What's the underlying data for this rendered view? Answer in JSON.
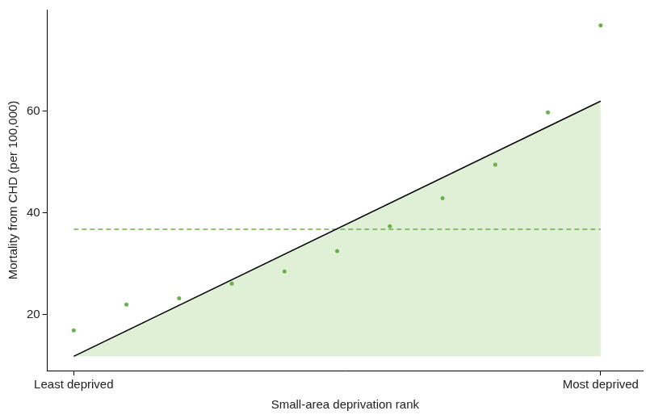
{
  "chart_data": {
    "type": "scatter",
    "x_label": "Small-area deprivation rank",
    "y_label": "Mortality from CHD (per 100,000)",
    "xlim": [
      -0.05,
      1.08
    ],
    "xticks": [
      {
        "value": 0,
        "label": "Least deprived"
      },
      {
        "value": 1,
        "label": "Most deprived"
      }
    ],
    "ylim": [
      9,
      80
    ],
    "yticks": [
      20,
      40,
      60
    ],
    "grid": false,
    "series": [
      {
        "type": "area",
        "color": "#dff0d6",
        "x": [
          0,
          1
        ],
        "values": [
          11.8,
          62.0
        ]
      },
      {
        "type": "line",
        "color": "#6ab04c",
        "line_style": "dashed",
        "x": [
          0,
          1
        ],
        "values": [
          36.8,
          36.8
        ]
      },
      {
        "type": "line",
        "color": "#000000",
        "line_style": "solid",
        "x": [
          0,
          1
        ],
        "values": [
          11.8,
          62.0
        ]
      },
      {
        "type": "scatter",
        "color": "#6ab04c",
        "marker": "circle",
        "x": [
          0,
          0.1,
          0.2,
          0.3,
          0.4,
          0.5,
          0.6,
          0.7,
          0.8,
          0.9,
          1
        ],
        "values": [
          16.9,
          22.0,
          23.2,
          26.1,
          28.5,
          32.5,
          37.4,
          42.9,
          49.5,
          59.8,
          76.9
        ]
      }
    ]
  }
}
